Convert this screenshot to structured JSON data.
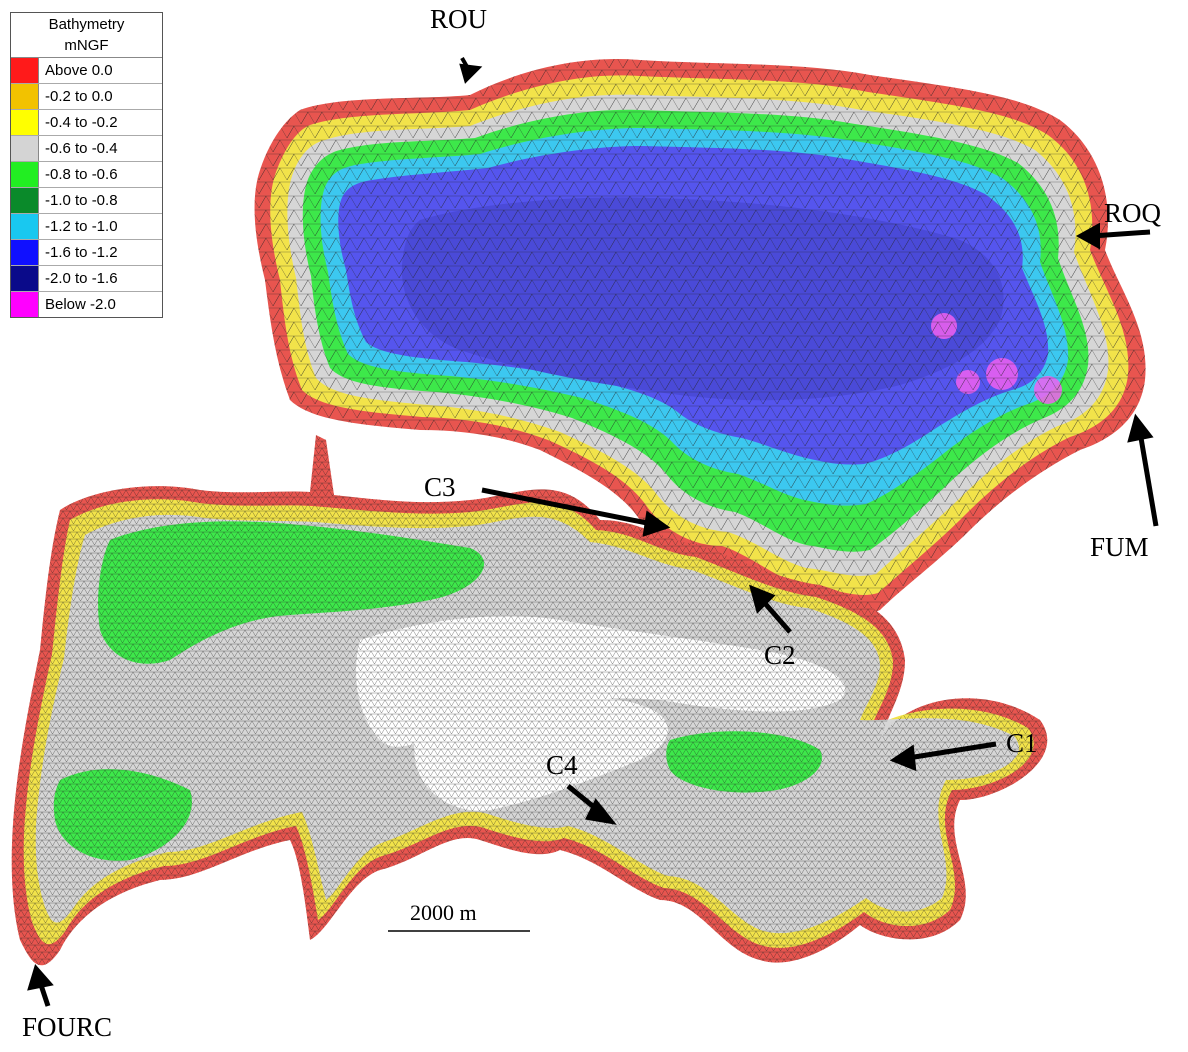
{
  "legend": {
    "title_line1": "Bathymetry",
    "title_line2": "mNGF",
    "classes": [
      {
        "label": "Above 0.0",
        "color": "#ff1a1a"
      },
      {
        "label": "-0.2 to 0.0",
        "color": "#f2c200"
      },
      {
        "label": "-0.4 to -0.2",
        "color": "#ffff00"
      },
      {
        "label": "-0.6 to -0.4",
        "color": "#d4d4d4"
      },
      {
        "label": "-0.8 to -0.6",
        "color": "#22ee22"
      },
      {
        "label": "-1.0 to -0.8",
        "color": "#0a8a2a"
      },
      {
        "label": "-1.2 to -1.0",
        "color": "#19c8f0"
      },
      {
        "label": "-1.6 to -1.2",
        "color": "#1010ff"
      },
      {
        "label": "-2.0 to -1.6",
        "color": "#0a0a8a"
      },
      {
        "label": "Below -2.0",
        "color": "#ff00ff"
      }
    ]
  },
  "sites": {
    "rou": "ROU",
    "roq": "ROQ",
    "fum": "FUM",
    "c1": "C1",
    "c2": "C2",
    "c3": "C3",
    "c4": "C4",
    "fourc": "FOURC"
  },
  "scale_bar": {
    "label": "2000 m"
  },
  "colors": {
    "land_edge": "#e8554f",
    "shallow": "#f2e34a",
    "grey": "#d6d6d6",
    "green": "#3de84a",
    "cyan": "#3cc8f0",
    "deep": "#5555ee",
    "deeper": "#4a4ad8",
    "pink": "#f060f0",
    "mesh": "#222222"
  }
}
